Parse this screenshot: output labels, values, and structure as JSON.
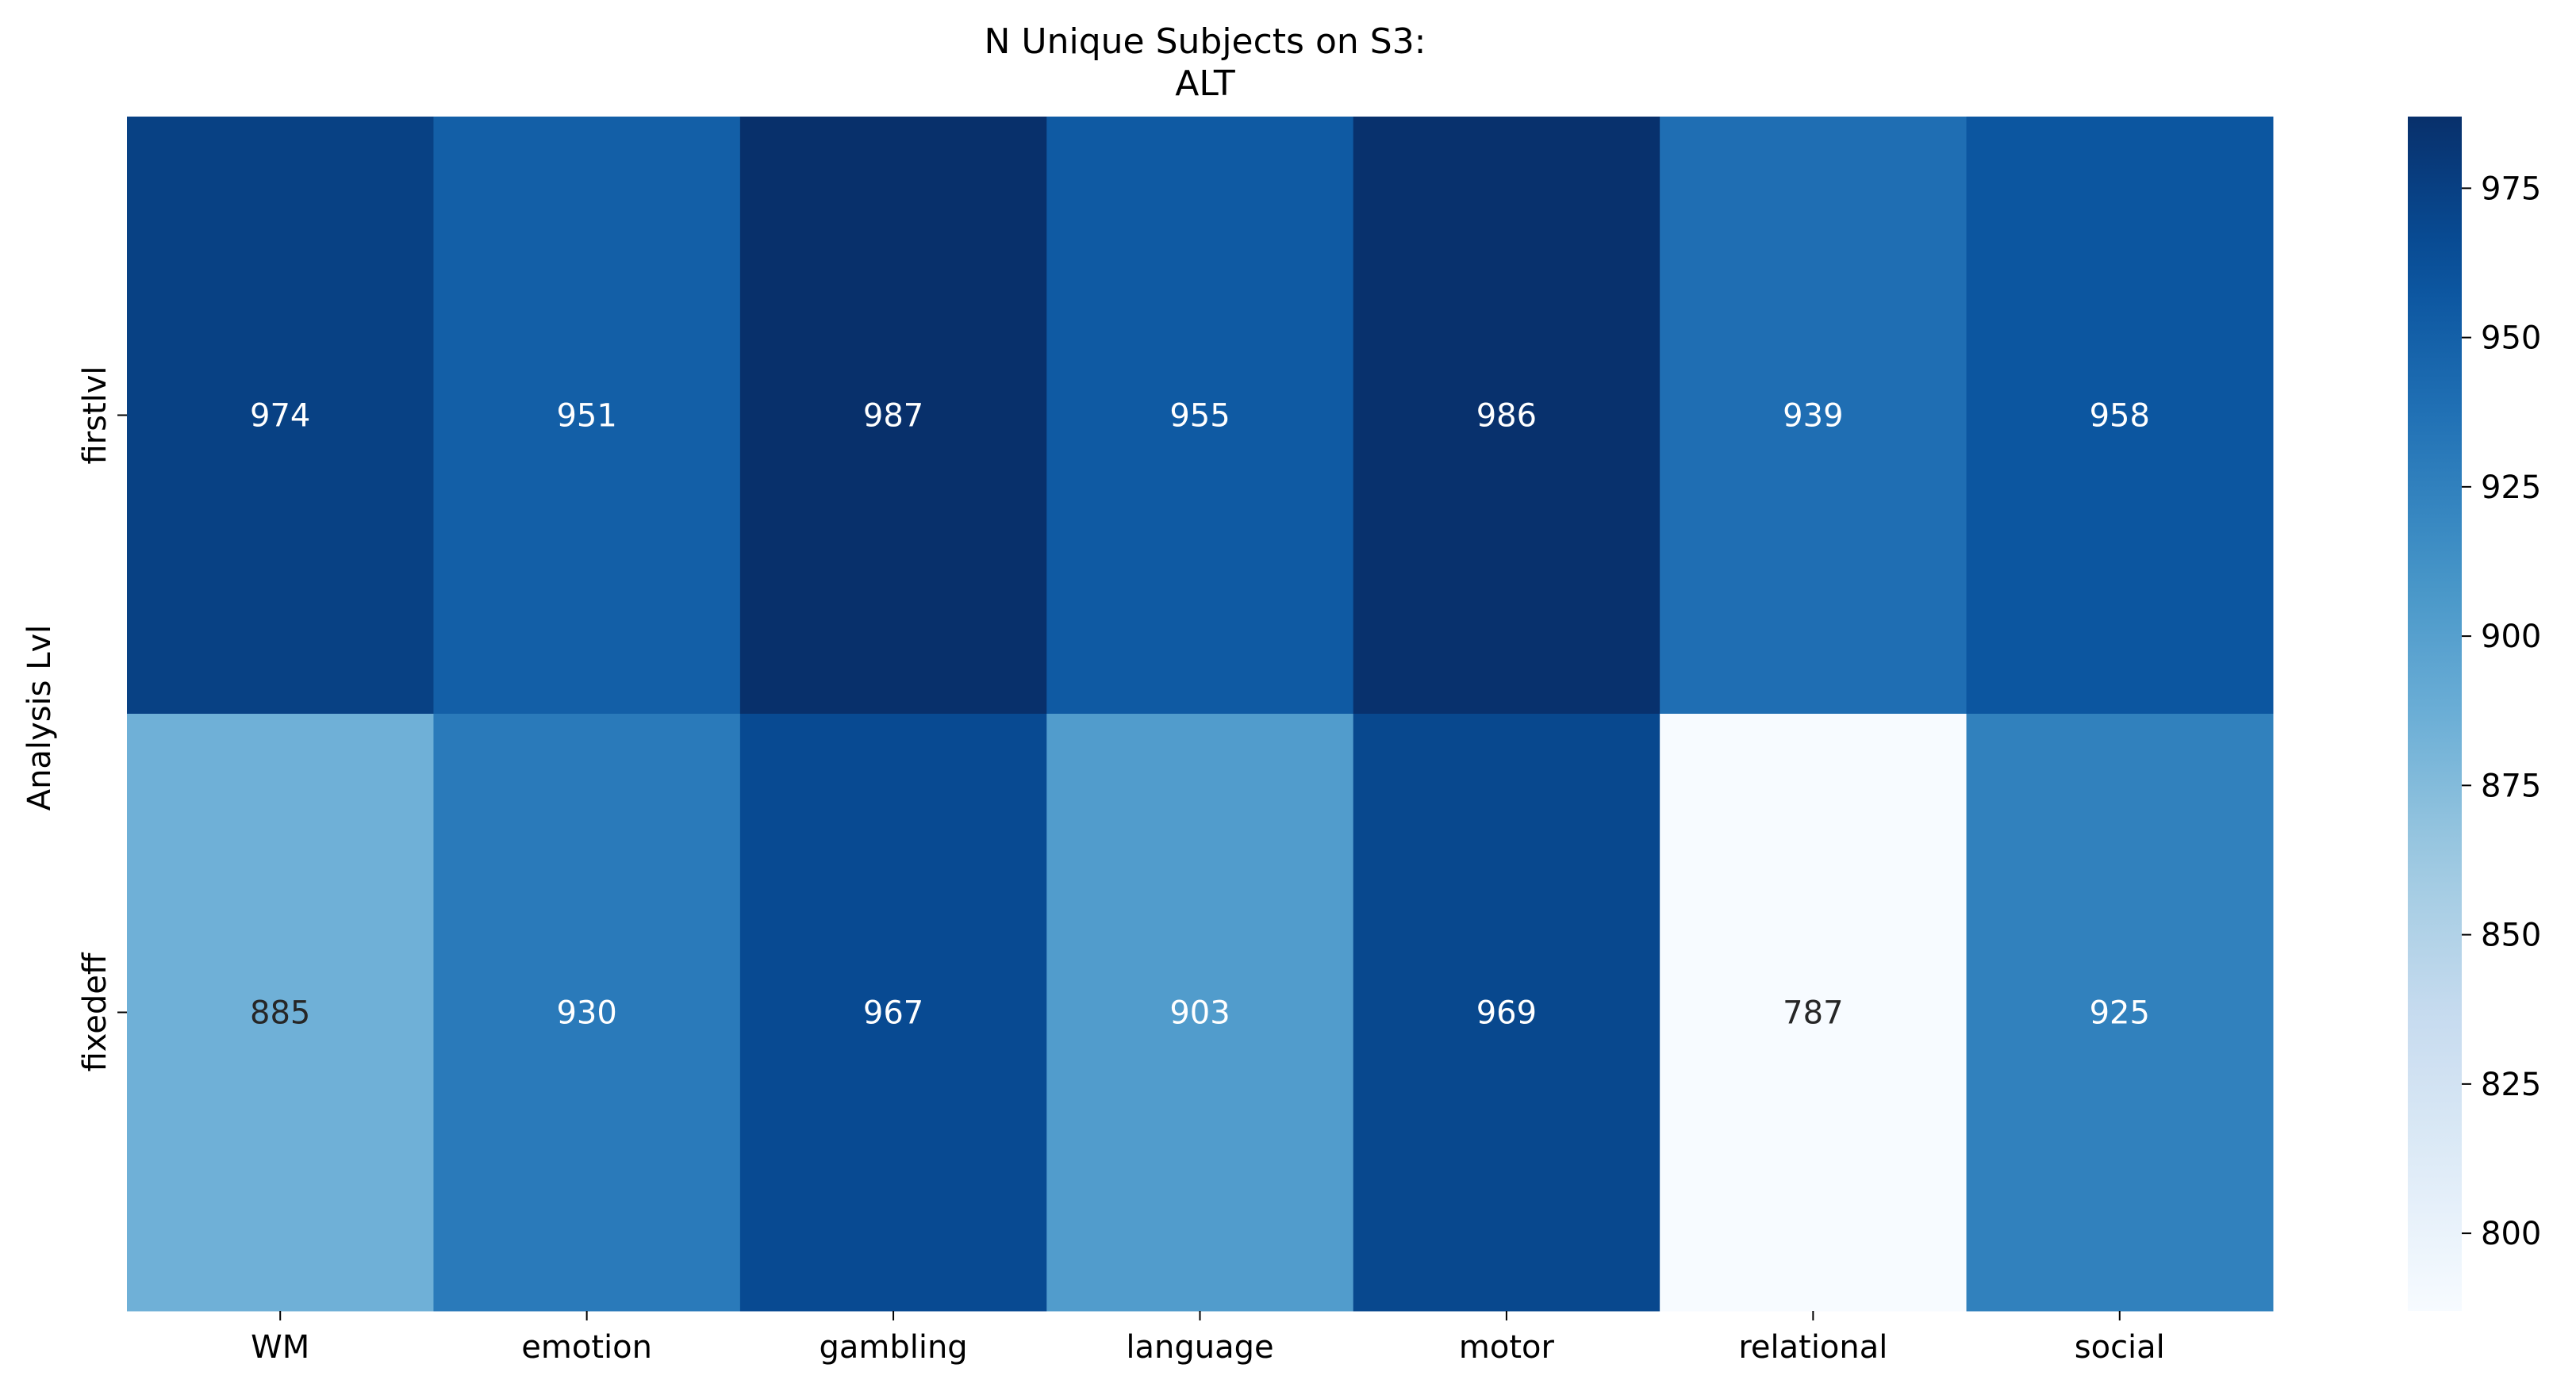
{
  "chart_data": {
    "type": "heatmap",
    "title": [
      "N Unique Subjects on S3:",
      "ALT"
    ],
    "xlabel": "",
    "ylabel": "Analysis Lvl",
    "x_categories": [
      "WM",
      "emotion",
      "gambling",
      "language",
      "motor",
      "relational",
      "social"
    ],
    "y_categories": [
      "firstlvl",
      "fixedeff"
    ],
    "values": [
      [
        974,
        951,
        987,
        955,
        986,
        939,
        958
      ],
      [
        885,
        930,
        967,
        903,
        969,
        787,
        925
      ]
    ],
    "colormap": "Blues",
    "vmin": 787,
    "vmax": 987,
    "colorbar_ticks": [
      800,
      825,
      850,
      875,
      900,
      925,
      950,
      975
    ],
    "annotations": true,
    "grid": false
  }
}
